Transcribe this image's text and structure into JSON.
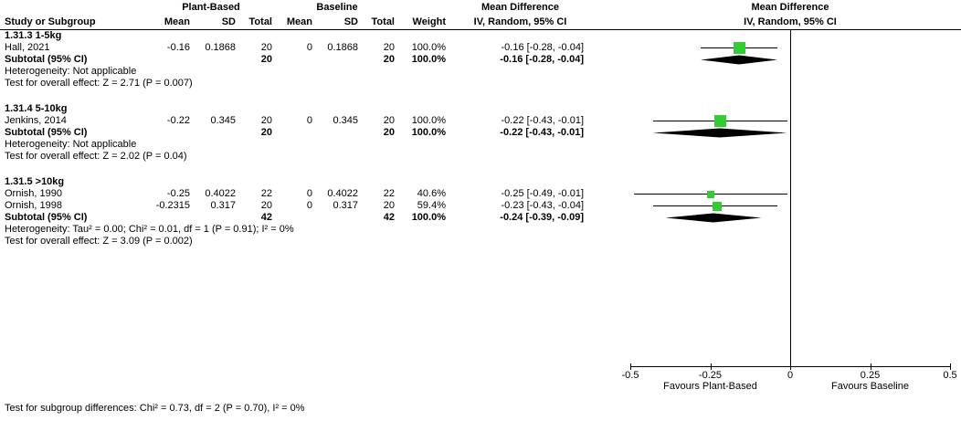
{
  "header": {
    "study": "Study or Subgroup",
    "plant_based": "Plant-Based",
    "baseline": "Baseline",
    "mean": "Mean",
    "sd": "SD",
    "total": "Total",
    "weight": "Weight",
    "md_title": "Mean Difference",
    "md_sub": "IV, Random, 95% CI"
  },
  "colors": {
    "square": "#33cc33",
    "diamond": "#000000",
    "line": "#000000"
  },
  "chart_data": {
    "type": "forest",
    "effect_measure": "Mean Difference",
    "method": "IV, Random, 95% CI",
    "xlim": [
      -0.5,
      0.5
    ],
    "ticks": [
      -0.5,
      -0.25,
      0,
      0.25,
      0.5
    ],
    "tick_labels": [
      "-0.5",
      "-0.25",
      "0",
      "0.25",
      "0.5"
    ],
    "xlabel_left": "Favours Plant-Based",
    "xlabel_right": "Favours Baseline",
    "subtotal_label": "Subtotal (95% CI)",
    "subgroups": [
      {
        "title": "1.31.3 1-5kg",
        "studies": [
          {
            "study": "Hall, 2021",
            "mean1": "-0.16",
            "sd1": "0.1868",
            "n1": "20",
            "mean2": "0",
            "sd2": "0.1868",
            "n2": "20",
            "weight": "100.0%",
            "weight_pct": 100.0,
            "md": -0.16,
            "ci_lo": -0.28,
            "ci_hi": -0.04,
            "ci_text": "-0.16 [-0.28, -0.04]"
          }
        ],
        "subtotal": {
          "n1": "20",
          "n2": "20",
          "weight": "100.0%",
          "md": -0.16,
          "ci_lo": -0.28,
          "ci_hi": -0.04,
          "ci_text": "-0.16 [-0.28, -0.04]"
        },
        "heterogeneity": "Heterogeneity: Not applicable",
        "overall_effect": "Test for overall effect: Z = 2.71 (P = 0.007)"
      },
      {
        "title": "1.31.4 5-10kg",
        "studies": [
          {
            "study": "Jenkins, 2014",
            "mean1": "-0.22",
            "sd1": "0.345",
            "n1": "20",
            "mean2": "0",
            "sd2": "0.345",
            "n2": "20",
            "weight": "100.0%",
            "weight_pct": 100.0,
            "md": -0.22,
            "ci_lo": -0.43,
            "ci_hi": -0.01,
            "ci_text": "-0.22 [-0.43, -0.01]"
          }
        ],
        "subtotal": {
          "n1": "20",
          "n2": "20",
          "weight": "100.0%",
          "md": -0.22,
          "ci_lo": -0.43,
          "ci_hi": -0.01,
          "ci_text": "-0.22 [-0.43, -0.01]"
        },
        "heterogeneity": "Heterogeneity: Not applicable",
        "overall_effect": "Test for overall effect: Z = 2.02 (P = 0.04)"
      },
      {
        "title": "1.31.5 >10kg",
        "studies": [
          {
            "study": "Ornish, 1990",
            "mean1": "-0.25",
            "sd1": "0.4022",
            "n1": "22",
            "mean2": "0",
            "sd2": "0.4022",
            "n2": "22",
            "weight": "40.6%",
            "weight_pct": 40.6,
            "md": -0.25,
            "ci_lo": -0.49,
            "ci_hi": -0.01,
            "ci_text": "-0.25 [-0.49, -0.01]"
          },
          {
            "study": "Ornish, 1998",
            "mean1": "-0.2315",
            "sd1": "0.317",
            "n1": "20",
            "mean2": "0",
            "sd2": "0.317",
            "n2": "20",
            "weight": "59.4%",
            "weight_pct": 59.4,
            "md": -0.23,
            "ci_lo": -0.43,
            "ci_hi": -0.04,
            "ci_text": "-0.23 [-0.43, -0.04]"
          }
        ],
        "subtotal": {
          "n1": "42",
          "n2": "42",
          "weight": "100.0%",
          "md": -0.24,
          "ci_lo": -0.39,
          "ci_hi": -0.09,
          "ci_text": "-0.24 [-0.39, -0.09]"
        },
        "heterogeneity": "Heterogeneity: Tau² = 0.00; Chi² = 0.01, df = 1 (P = 0.91); I² = 0%",
        "overall_effect": "Test for overall effect: Z = 3.09 (P = 0.002)"
      }
    ],
    "subgroup_test": "Test for subgroup differences: Chi² = 0.73, df = 2 (P = 0.70), I² = 0%"
  }
}
